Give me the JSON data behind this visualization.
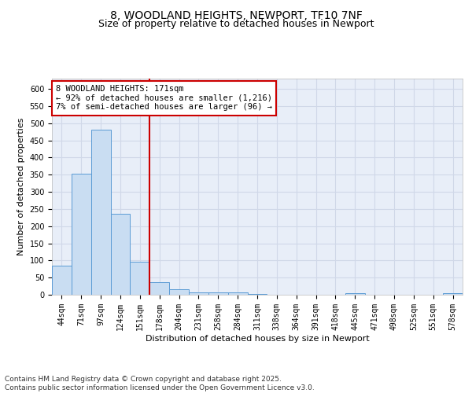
{
  "title_line1": "8, WOODLAND HEIGHTS, NEWPORT, TF10 7NF",
  "title_line2": "Size of property relative to detached houses in Newport",
  "xlabel": "Distribution of detached houses by size in Newport",
  "ylabel": "Number of detached properties",
  "categories": [
    "44sqm",
    "71sqm",
    "97sqm",
    "124sqm",
    "151sqm",
    "178sqm",
    "204sqm",
    "231sqm",
    "258sqm",
    "284sqm",
    "311sqm",
    "338sqm",
    "364sqm",
    "391sqm",
    "418sqm",
    "445sqm",
    "471sqm",
    "498sqm",
    "525sqm",
    "551sqm",
    "578sqm"
  ],
  "values": [
    85,
    352,
    480,
    237,
    97,
    37,
    16,
    7,
    8,
    8,
    3,
    0,
    0,
    0,
    0,
    5,
    0,
    0,
    0,
    0,
    4
  ],
  "bar_color": "#c9ddf2",
  "bar_edge_color": "#5b9bd5",
  "vline_index": 5,
  "vline_color": "#cc0000",
  "annotation_text": "8 WOODLAND HEIGHTS: 171sqm\n← 92% of detached houses are smaller (1,216)\n7% of semi-detached houses are larger (96) →",
  "annotation_box_color": "#ffffff",
  "annotation_box_edge_color": "#cc0000",
  "ylim": [
    0,
    630
  ],
  "yticks": [
    0,
    50,
    100,
    150,
    200,
    250,
    300,
    350,
    400,
    450,
    500,
    550,
    600
  ],
  "grid_color": "#d0d8e8",
  "background_color": "#e8eef8",
  "footer_text": "Contains HM Land Registry data © Crown copyright and database right 2025.\nContains public sector information licensed under the Open Government Licence v3.0.",
  "title_fontsize": 10,
  "subtitle_fontsize": 9,
  "axis_label_fontsize": 8,
  "tick_fontsize": 7,
  "annotation_fontsize": 7.5,
  "footer_fontsize": 6.5
}
